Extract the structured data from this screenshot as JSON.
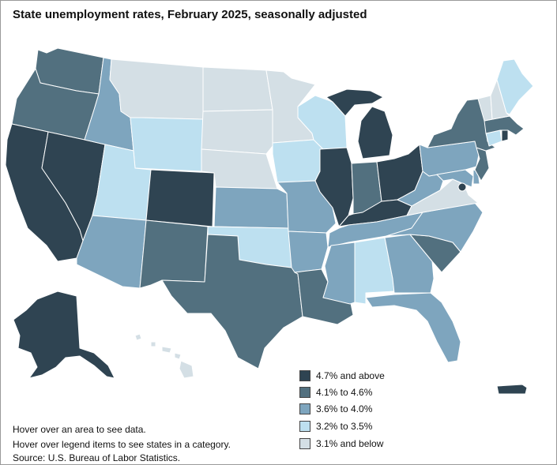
{
  "title": "State unemployment rates, February 2025, seasonally adjusted",
  "colors": {
    "c1": "#2f4452",
    "c2": "#52707f",
    "c3": "#7ea5be",
    "c4": "#bde0f0",
    "c5": "#d4dfe5"
  },
  "legend": [
    {
      "label": "4.7% and above",
      "color": "#2f4452"
    },
    {
      "label": "4.1% to 4.6%",
      "color": "#52707f"
    },
    {
      "label": "3.6% to 4.0%",
      "color": "#7ea5be"
    },
    {
      "label": "3.2% to 3.5%",
      "color": "#bde0f0"
    },
    {
      "label": "3.1% and below",
      "color": "#d4dfe5"
    }
  ],
  "categories": {
    "WA": "c2",
    "OR": "c2",
    "CA": "c1",
    "NV": "c1",
    "ID": "c3",
    "MT": "c5",
    "WY": "c4",
    "UT": "c4",
    "AZ": "c3",
    "CO": "c1",
    "NM": "c2",
    "ND": "c5",
    "SD": "c5",
    "NE": "c5",
    "KS": "c3",
    "OK": "c4",
    "TX": "c2",
    "MN": "c5",
    "IA": "c4",
    "MO": "c3",
    "AR": "c3",
    "LA": "c2",
    "WI": "c4",
    "IL": "c1",
    "MI": "c1",
    "IN": "c2",
    "OH": "c1",
    "KY": "c1",
    "TN": "c3",
    "MS": "c3",
    "AL": "c4",
    "GA": "c3",
    "FL": "c3",
    "SC": "c2",
    "NC": "c3",
    "VA": "c5",
    "WV": "c3",
    "PA": "c3",
    "NY": "c2",
    "NJ": "c2",
    "MD": "c3",
    "DE": "c3",
    "DC": "c1",
    "CT": "c4",
    "RI": "c1",
    "MA": "c2",
    "VT": "c5",
    "NH": "c5",
    "ME": "c4",
    "AK": "c1",
    "HI": "c5",
    "PR": "c1"
  },
  "notes": {
    "hover_area": "Hover over an area to see data.",
    "hover_legend": "Hover over legend items to see states in a category.",
    "source": "Source: U.S. Bureau of Labor Statistics."
  }
}
